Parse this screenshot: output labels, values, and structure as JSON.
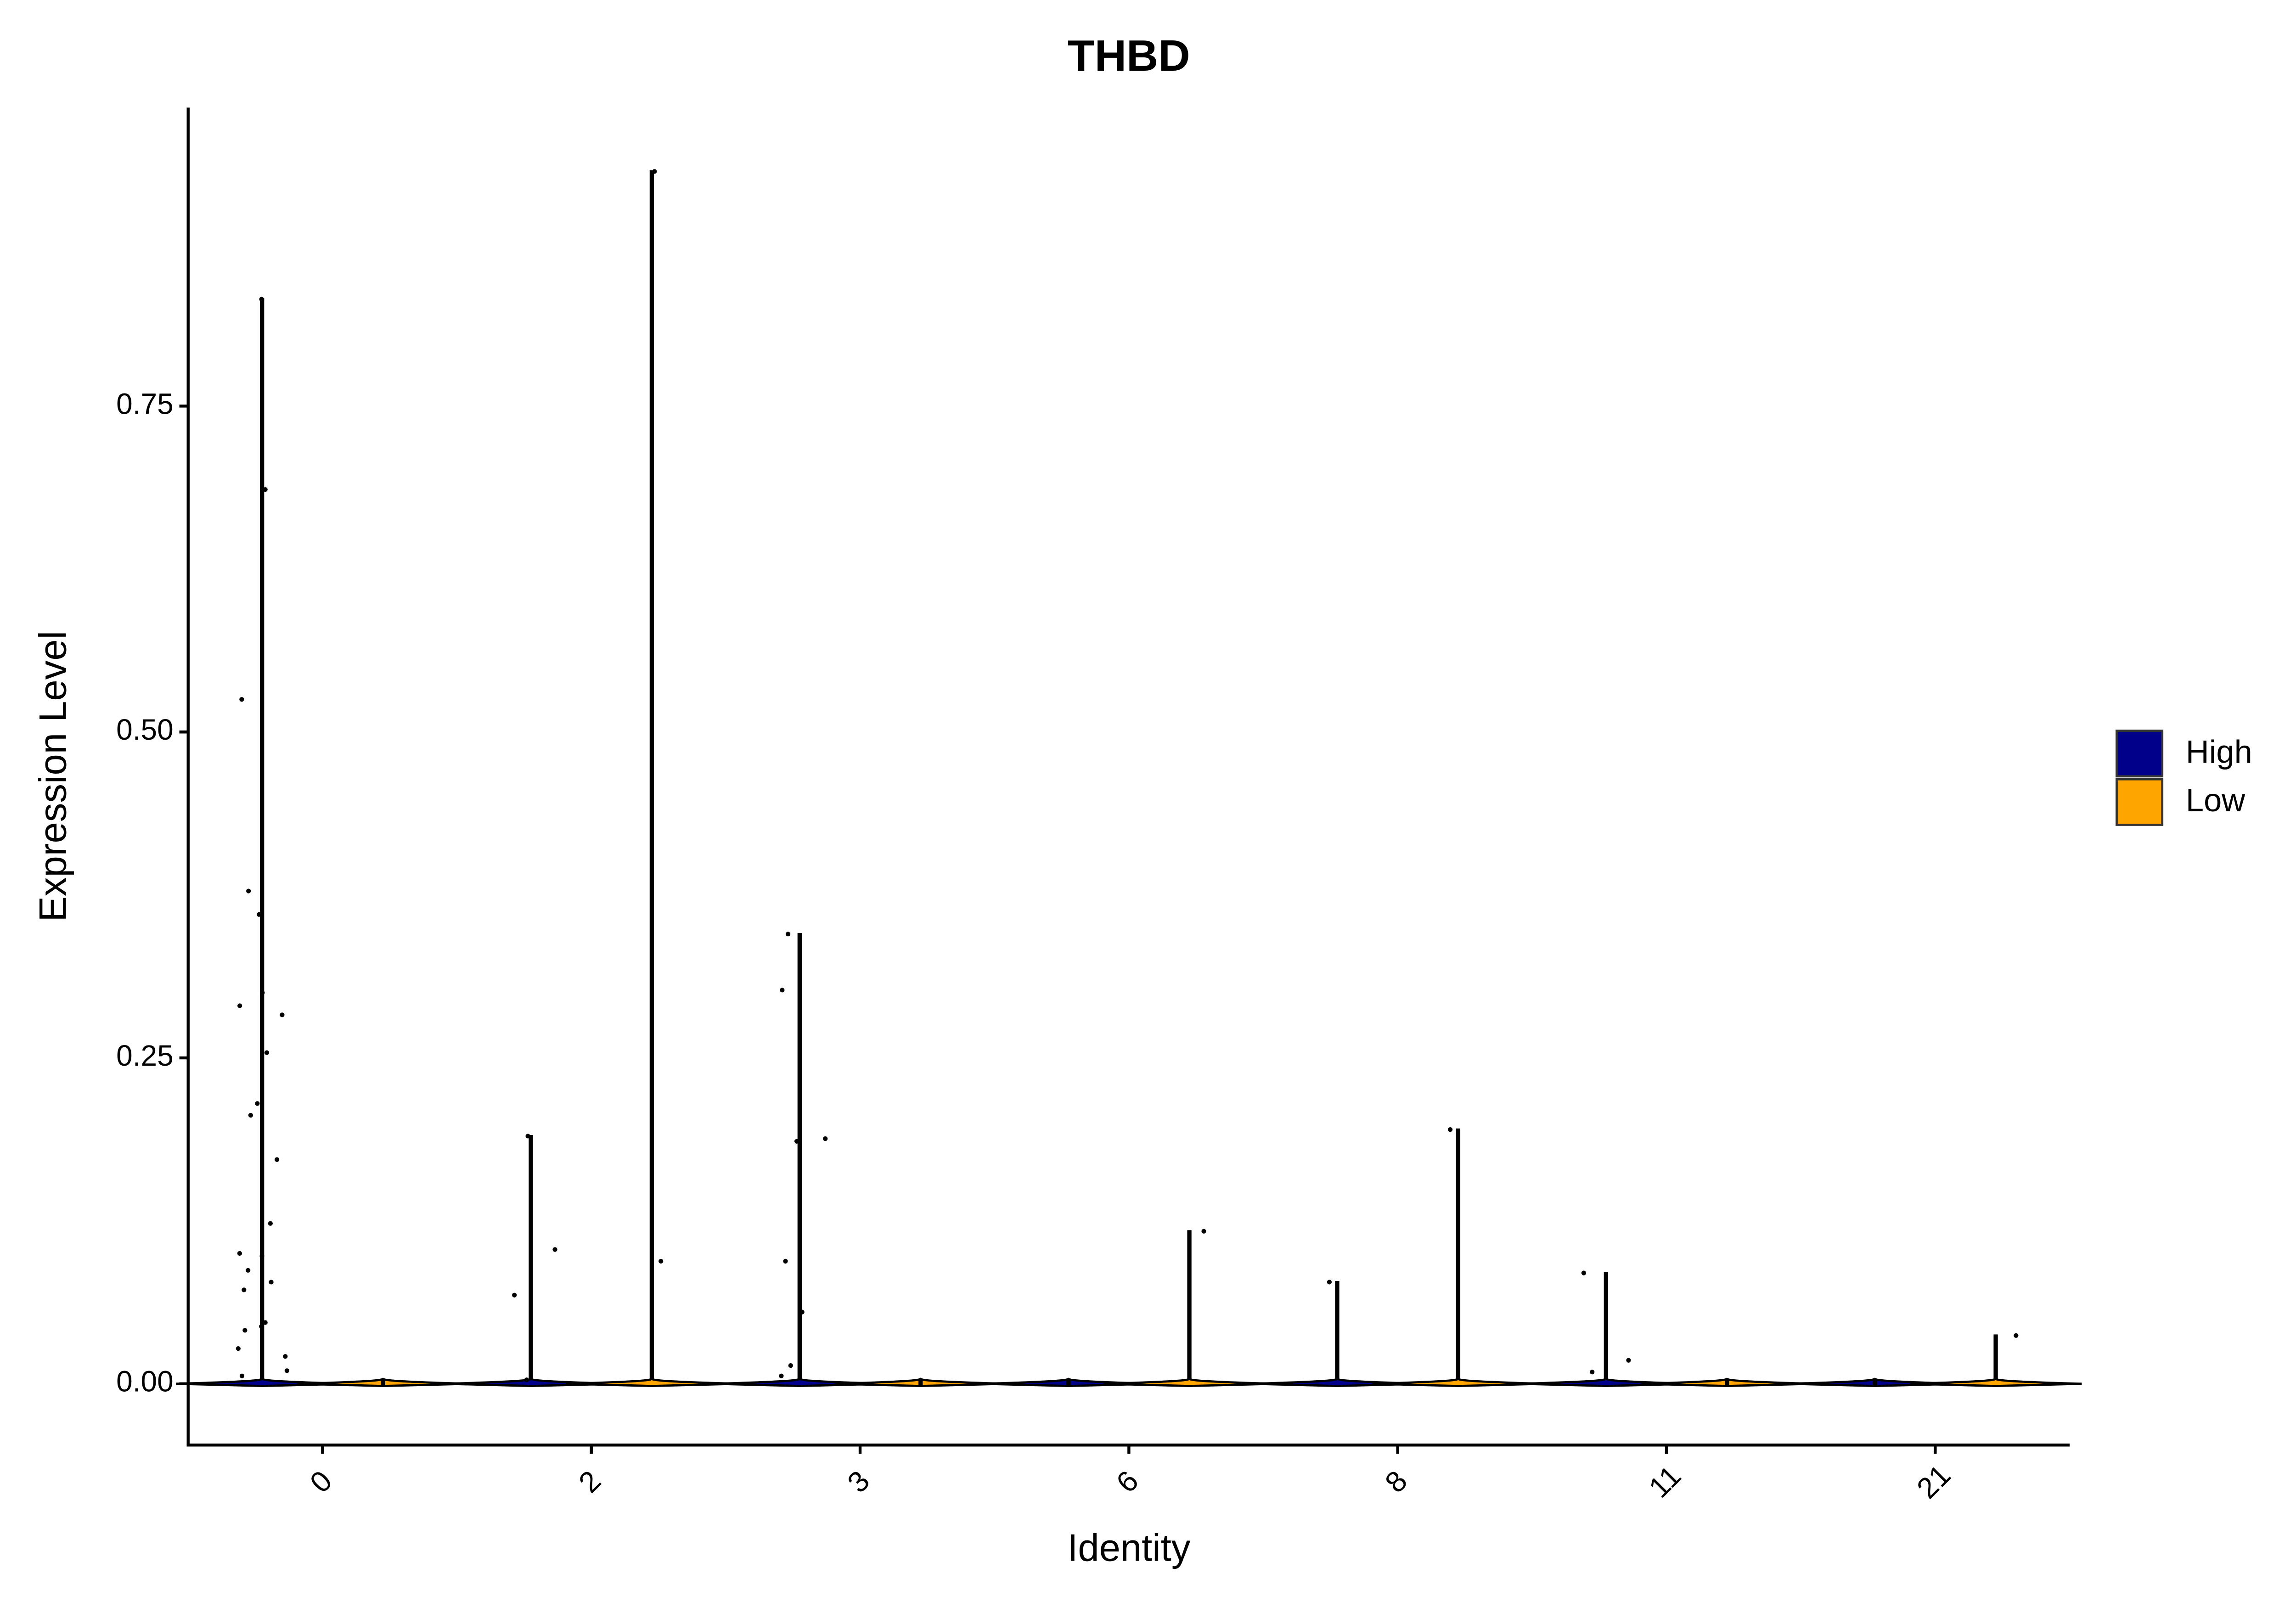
{
  "chart_data": {
    "type": "violin",
    "title": "THBD",
    "x_label": "Identity",
    "y_label": "Expression Level",
    "categories": [
      "0",
      "2",
      "3",
      "6",
      "8",
      "11",
      "21"
    ],
    "ylim": [
      -0.047,
      0.979
    ],
    "yticks": [
      {
        "value": 0,
        "label": "0.00"
      },
      0.25,
      {
        "value": 0.5,
        "label": "0.50"
      },
      0.75
    ],
    "series": [
      {
        "name": "High",
        "color": "#00008b",
        "values": [
          0.832,
          0.19,
          0.345,
          0,
          0.078,
          0.085,
          0
        ],
        "points": [
          [
            0.832,
            0.686,
            0.525,
            0.378,
            0.36,
            0.3,
            0.29,
            0.283,
            0.254,
            0.215,
            0.206,
            0.172,
            0.123,
            0.1,
            0.098,
            0.087,
            0.078,
            0.072,
            0.047,
            0.044,
            0.041,
            0.027,
            0.021,
            0.01,
            0.006
          ],
          [
            0.19,
            0.103,
            0.068,
            0.003
          ],
          [
            0.345,
            0.302,
            0.188,
            0.186,
            0.094,
            0.055,
            0.014,
            0.006
          ],
          [],
          [
            0.078
          ],
          [
            0.085,
            0.018,
            0.009
          ],
          []
        ]
      },
      {
        "name": "Low",
        "color": "#ffa500",
        "values": [
          0,
          0.93,
          0,
          0.117,
          0.195,
          0,
          0.037
        ],
        "points": [
          [],
          [
            0.93,
            0.094
          ],
          [],
          [
            0.117
          ],
          [
            0.195
          ],
          [],
          [
            0.037
          ]
        ]
      }
    ]
  }
}
